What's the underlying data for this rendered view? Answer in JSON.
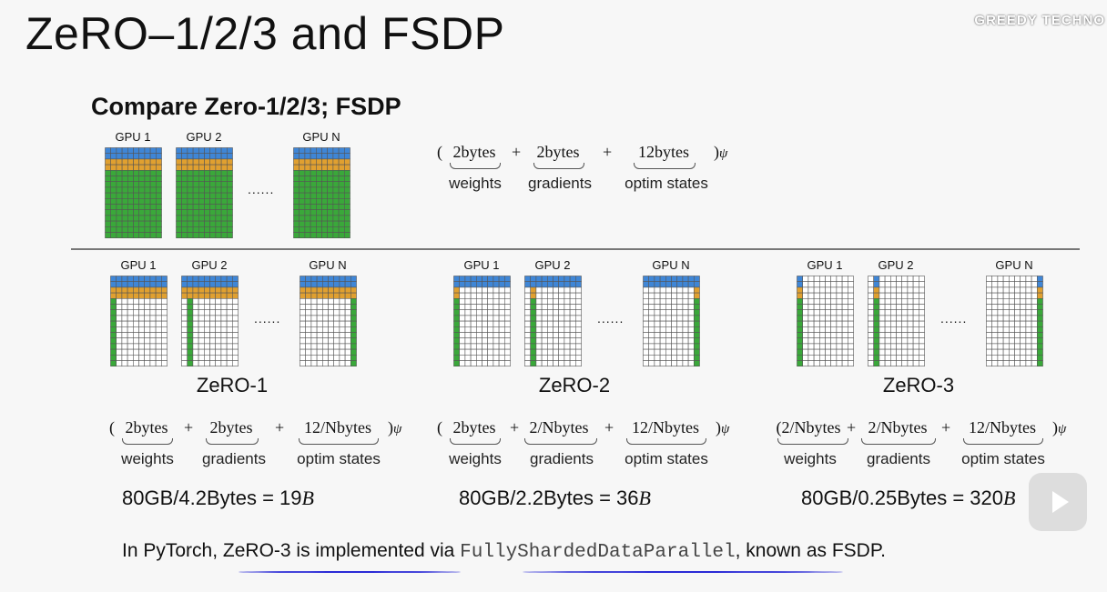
{
  "slide": {
    "title": "ZeRO–1/2/3 and FSDP",
    "subtitle": "Compare Zero-1/2/3; FSDP",
    "ellipsis": "......"
  },
  "gpu_labels": [
    "GPU 1",
    "GPU 2",
    "GPU N"
  ],
  "colors": {
    "weights": "#3f86d6",
    "gradients": "#e0a030",
    "optim_states": "#3aa83a",
    "empty_cell": "#ffffff",
    "grid_line": "#555555",
    "underline": "#2a2ad6"
  },
  "baseline": {
    "terms": [
      "2bytes",
      "2bytes",
      "12bytes"
    ],
    "labels": [
      "weights",
      "gradients",
      "optim states"
    ],
    "multiplier": "ψ"
  },
  "stages": [
    {
      "name": "ZeRO-1",
      "terms": [
        "2bytes",
        "2bytes",
        "12/",
        "N",
        "bytes"
      ],
      "terms_display": [
        "2bytes",
        "2bytes",
        "12/Nbytes"
      ],
      "labels": [
        "weights",
        "gradients",
        "optim states"
      ],
      "result_left": "80GB/4.2Bytes = 19",
      "result_unit": "B"
    },
    {
      "name": "ZeRO-2",
      "terms_display": [
        "2bytes",
        "2/Nbytes",
        "12/Nbytes"
      ],
      "labels": [
        "weights",
        "gradients",
        "optim states"
      ],
      "result_left": "80GB/2.2Bytes = 36",
      "result_unit": "B"
    },
    {
      "name": "ZeRO-3",
      "terms_display": [
        "(2/Nbytes",
        "2/Nbytes",
        "12/Nbytes"
      ],
      "labels": [
        "weights",
        "gradients",
        "optim states"
      ],
      "result_left": "80GB/0.25Bytes = 320",
      "result_unit": "B"
    }
  ],
  "footer": {
    "prefix": "In PyTorch, ",
    "highlight": "ZeRO-3 is implemented",
    "middle": " via ",
    "code": "FullyShardedDataParallel",
    "suffix": ", known as FSDP."
  },
  "watermark": {
    "logo_text": "GREEDY TECHNO"
  }
}
